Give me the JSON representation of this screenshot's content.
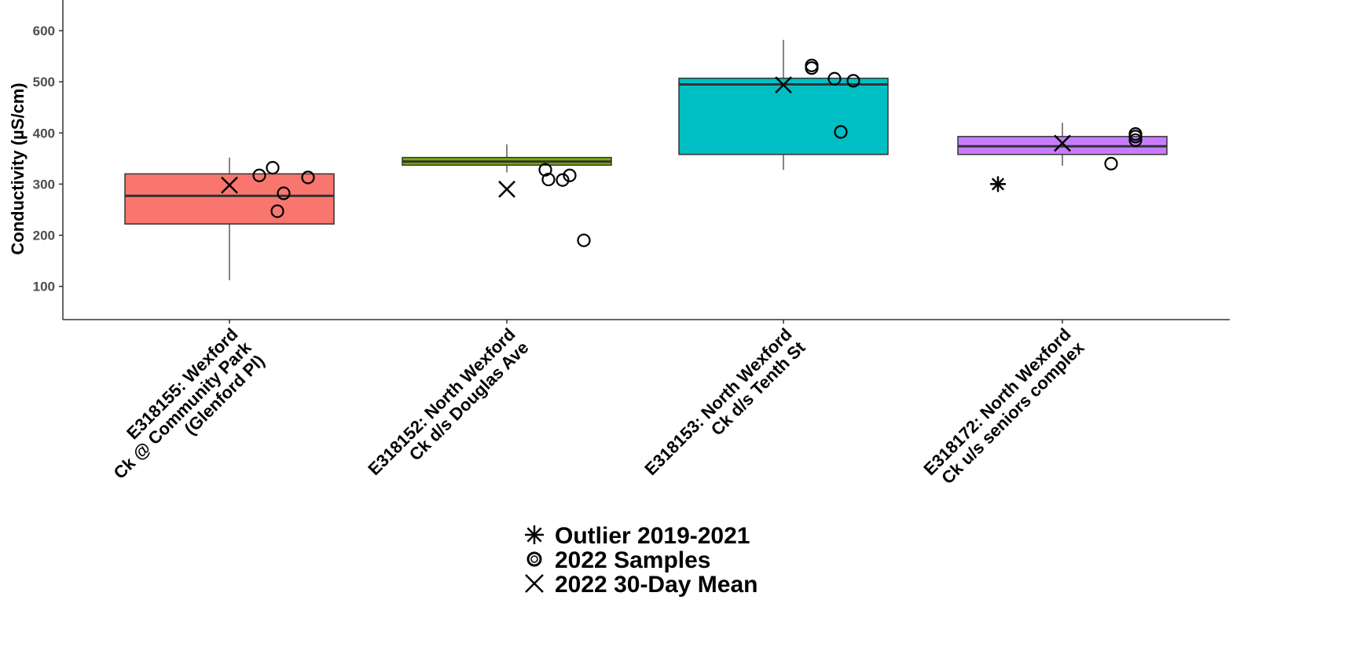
{
  "chart_data": {
    "type": "box",
    "ylabel": "Conductivity (µS/cm)",
    "ylim": [
      35,
      660
    ],
    "yticks": [
      100,
      200,
      300,
      400,
      500,
      600
    ],
    "grid": false,
    "legend_position": "bottom",
    "categories": [
      {
        "label_lines": [
          "E318155: Wexford",
          "Ck @ Community Park",
          "(Glenford Pl)"
        ],
        "color": "#F8766D",
        "box": {
          "whisker_low": 112,
          "q1": 222,
          "median": 277,
          "q3": 320,
          "whisker_high": 352
        },
        "samples_2022": [
          317,
          332,
          313,
          282,
          247
        ],
        "mean_30day": 298,
        "outliers": []
      },
      {
        "label_lines": [
          "E318152: North Wexford",
          "Ck d/s Douglas Ave"
        ],
        "color": "#7CAE00",
        "box": {
          "whisker_low": 323,
          "q1": 337,
          "median": 344,
          "q3": 352,
          "whisker_high": 378
        },
        "samples_2022": [
          328,
          309,
          308,
          317,
          190
        ],
        "mean_30day": 290,
        "outliers": []
      },
      {
        "label_lines": [
          "E318153: North Wexford",
          "Ck d/s Tenth St"
        ],
        "color": "#00BFC4",
        "box": {
          "whisker_low": 328,
          "q1": 358,
          "median": 495,
          "q3": 507,
          "whisker_high": 582
        },
        "samples_2022": [
          532,
          527,
          506,
          502,
          402
        ],
        "mean_30day": 494,
        "outliers": []
      },
      {
        "label_lines": [
          "E318172: North Wexford",
          "Ck u/s seniors complex"
        ],
        "color": "#C77CFF",
        "box": {
          "whisker_low": 336,
          "q1": 358,
          "median": 374,
          "q3": 393,
          "whisker_high": 420
        },
        "samples_2022": [
          398,
          393,
          386,
          340
        ],
        "mean_30day": 380,
        "outliers": [
          300
        ]
      }
    ],
    "legend": [
      {
        "symbol": "asterisk",
        "label": "Outlier 2019-2021"
      },
      {
        "symbol": "circle",
        "label": "2022 Samples"
      },
      {
        "symbol": "cross",
        "label": "2022 30-Day Mean"
      }
    ]
  }
}
